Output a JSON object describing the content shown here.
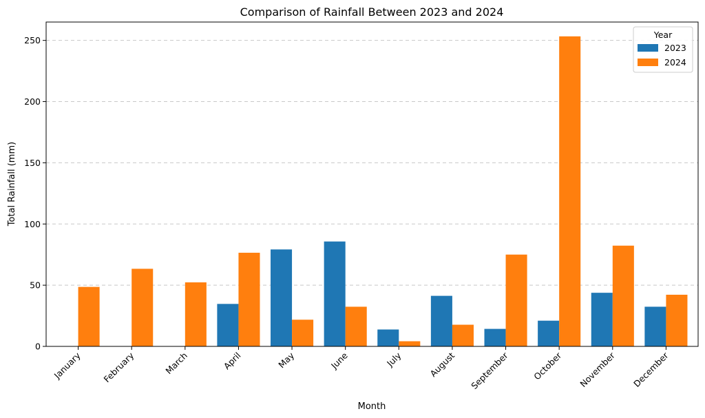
{
  "chart_data": {
    "type": "bar",
    "title": "Comparison of Rainfall Between 2023 and 2024",
    "xlabel": "Month",
    "ylabel": "Total Rainfall (mm)",
    "categories": [
      "January",
      "February",
      "March",
      "April",
      "May",
      "June",
      "July",
      "August",
      "September",
      "October",
      "November",
      "December"
    ],
    "series": [
      {
        "name": "2023",
        "color": "#1f77b4",
        "values": [
          0,
          0,
          0,
          34.7,
          79.2,
          85.7,
          13.8,
          41.3,
          14.3,
          21.0,
          43.8,
          32.4
        ]
      },
      {
        "name": "2024",
        "color": "#ff7f0e",
        "values": [
          48.6,
          63.4,
          52.3,
          76.5,
          21.8,
          32.4,
          4.2,
          17.7,
          75.0,
          253.3,
          82.3,
          42.2
        ]
      }
    ],
    "ylim": [
      0,
      265
    ],
    "yticks": [
      0,
      50,
      100,
      150,
      200,
      250
    ],
    "grid": "y-dashed",
    "legend": {
      "title": "Year",
      "position": "top-right"
    }
  }
}
